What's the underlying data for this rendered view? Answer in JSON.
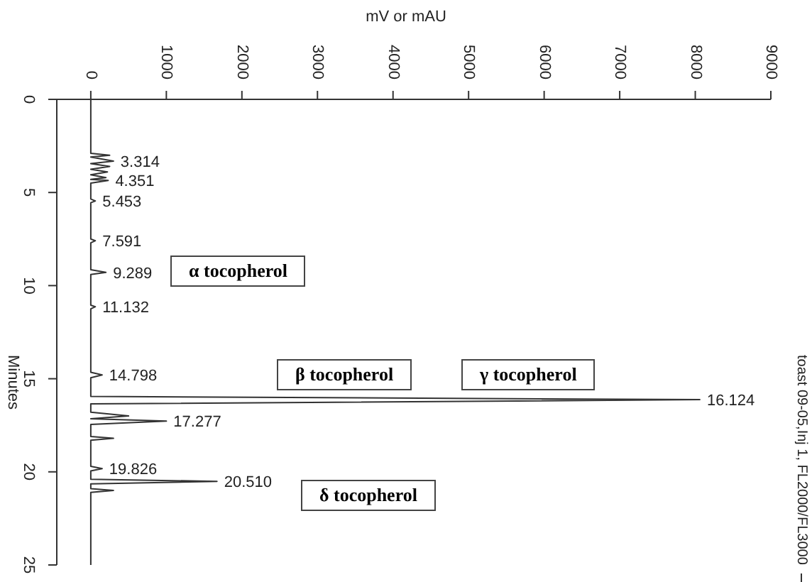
{
  "chart_data": {
    "type": "line",
    "orientation": "horizontal",
    "xlabel": "mV or mAU",
    "ylabel": "Minutes",
    "xlim": [
      -450,
      9000
    ],
    "xticks": [
      0,
      1000,
      2000,
      3000,
      4000,
      5000,
      6000,
      7000,
      8000,
      9000
    ],
    "ylim": [
      25,
      0
    ],
    "yticks": [
      0,
      5,
      10,
      15,
      20,
      25
    ],
    "legend": "right",
    "marker": "none",
    "line_style": "solid",
    "series": [
      {
        "name": "toast 09-05,Inj 1, FL2000/FL3000",
        "color": "#333333",
        "x": [
          0,
          2.9,
          3.0,
          3.1,
          3.314,
          3.45,
          3.6,
          3.75,
          3.9,
          4.05,
          4.2,
          4.3,
          4.351,
          4.5,
          5.35,
          5.453,
          5.55,
          7.5,
          7.591,
          7.7,
          9.15,
          9.289,
          9.4,
          11.05,
          11.132,
          11.25,
          14.65,
          14.798,
          14.95,
          15.95,
          16.124,
          16.35,
          16.8,
          17.0,
          17.15,
          17.277,
          17.45,
          18.1,
          18.2,
          18.3,
          19.7,
          19.826,
          19.95,
          20.4,
          20.51,
          20.65,
          20.9,
          21.0,
          21.1,
          25
        ],
        "values": [
          0,
          0,
          250,
          0,
          300,
          0,
          250,
          0,
          220,
          0,
          200,
          0,
          230,
          0,
          0,
          60,
          0,
          0,
          60,
          0,
          0,
          200,
          0,
          0,
          60,
          0,
          0,
          150,
          0,
          0,
          8060,
          0,
          0,
          500,
          0,
          1000,
          0,
          0,
          300,
          0,
          0,
          150,
          0,
          0,
          1670,
          0,
          0,
          300,
          0,
          0
        ]
      }
    ],
    "annotations": [
      {
        "text": "3.314",
        "x": 300,
        "y": 3.314
      },
      {
        "text": "4.351",
        "x": 230,
        "y": 4.351
      },
      {
        "text": "5.453",
        "x": 60,
        "y": 5.453
      },
      {
        "text": "7.591",
        "x": 60,
        "y": 7.591
      },
      {
        "text": "9.289",
        "x": 200,
        "y": 9.289
      },
      {
        "text": "11.132",
        "x": 60,
        "y": 11.132
      },
      {
        "text": "14.798",
        "x": 150,
        "y": 14.798
      },
      {
        "text": "16.124",
        "x": 8060,
        "y": 16.124
      },
      {
        "text": "17.277",
        "x": 1000,
        "y": 17.277
      },
      {
        "text": "19.826",
        "x": 150,
        "y": 19.826
      },
      {
        "text": "20.510",
        "x": 1670,
        "y": 20.51
      },
      "α tocopherol",
      "β tocopherol",
      "γ tocopherol",
      "δ tocopherol"
    ]
  }
}
